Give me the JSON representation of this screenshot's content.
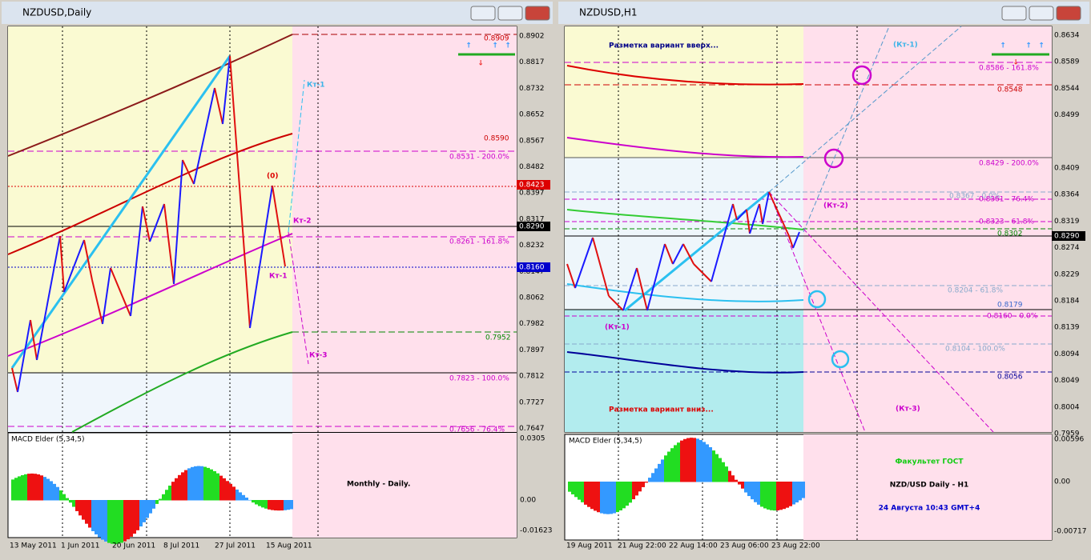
{
  "windows": [
    {
      "title": "NZDUSD,Daily",
      "price_axis": [
        "0.8902",
        "0.8817",
        "0.8732",
        "0.8652",
        "0.8567",
        "0.8482",
        "0.8397",
        "0.8317",
        "0.8232",
        "0.8147",
        "0.8062",
        "0.7982",
        "0.7897",
        "0.7812",
        "0.7727",
        "0.7647"
      ],
      "price_markers": [
        "0.8423",
        "0.8290",
        "0.8160"
      ],
      "levels": [
        "0.8909",
        "0.8590",
        "0.8531 - 200.0%",
        "0.8261 - 161.8%",
        "0.7952",
        "0.7823 - 100.0%",
        "0.7656 - 76.4%"
      ],
      "annotations": [
        "Кт-1",
        "(0)",
        "Кт-2",
        "Кт-1",
        "Кт-3"
      ],
      "indicator": {
        "name": "MACD Elder (5,34,5)",
        "axis": [
          "0.0305",
          "0.00",
          "-0.01623"
        ]
      },
      "time_axis": [
        "13 May 2011",
        "1 Jun 2011",
        "20 Jun 2011",
        "8 Jul 2011",
        "27 Jul 2011",
        "15 Aug 2011"
      ],
      "captions": [
        "Monthly - Daily."
      ]
    },
    {
      "title": "NZDUSD,H1",
      "price_axis": [
        "0.8634",
        "0.8589",
        "0.8544",
        "0.8499",
        "0.8409",
        "0.8364",
        "0.8319",
        "0.8274",
        "0.8229",
        "0.8184",
        "0.8139",
        "0.8094",
        "0.8049",
        "0.8004",
        "0.7959"
      ],
      "price_markers": [
        "0.8290"
      ],
      "levels": [
        "0.8586 - 161.8%",
        "0.8548",
        "0.8429 - 200.0%",
        "0.8367 - 0.0%",
        "0.8361 - 76.4%",
        "0.8323 - 61.8%",
        "0.8302",
        "0.8204 - 61.8%",
        "0.8179",
        "0.8160 - 0.0%",
        "0.8104 - 100.0%",
        "0.8056"
      ],
      "annotations": [
        "Разметка вариант вверх...",
        "(Кт-1)",
        "(Кт-2)",
        "(Кт-1)",
        "(Кт-3)",
        "Разметка вариант вниз..."
      ],
      "indicator": {
        "name": "MACD Elder (5,34,5)",
        "axis": [
          "0.00596",
          "0.00",
          "-0.00717"
        ]
      },
      "time_axis": [
        "19 Aug 2011",
        "21 Aug 22:00",
        "22 Aug 14:00",
        "23 Aug 06:00",
        "23 Aug 22:00"
      ],
      "captions": [
        "Факультет ГОСТ",
        "NZD/USD Daily - H1",
        "24 Августа 10:43 GMT+4"
      ]
    }
  ]
}
